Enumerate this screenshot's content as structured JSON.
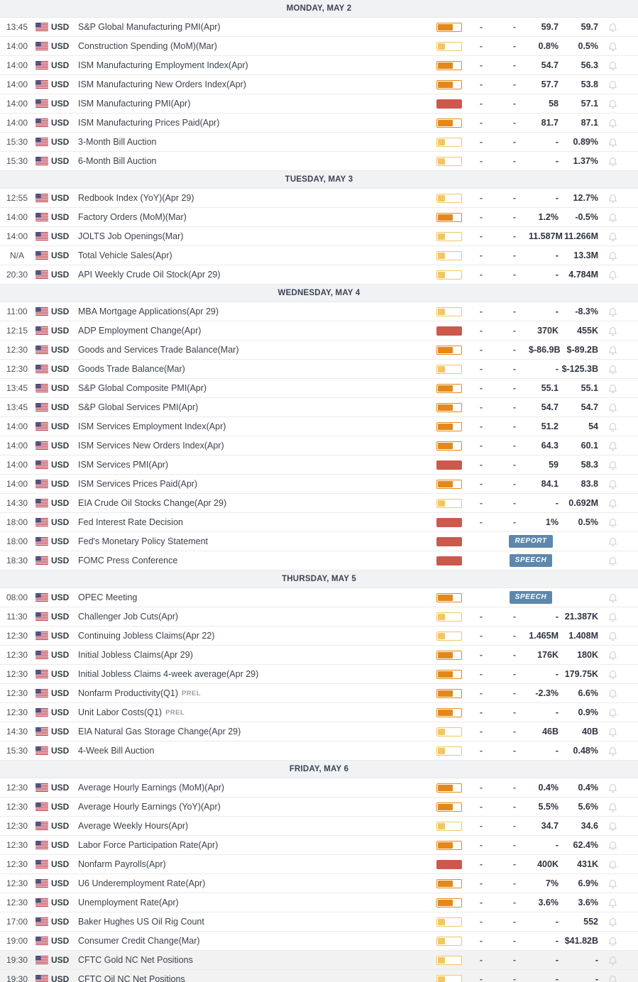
{
  "calendar": {
    "currency_label": "USD",
    "flag_icon": "us-flag-icon",
    "bell_icon": "bell-icon",
    "colors": {
      "low": "#f2c662",
      "medium": "#e2891b",
      "high": "#cd584c",
      "badge_bg": "#5e87ad",
      "day_header_bg": "#f1f2f4",
      "day_header_text": "#3b4254"
    },
    "days": [
      {
        "label": "MONDAY, MAY 2",
        "events": [
          {
            "time": "13:45",
            "currency": "USD",
            "name": "S&P Global Manufacturing PMI(Apr)",
            "volatility": "medium",
            "dash1": "-",
            "dash2": "-",
            "consensus": "59.7",
            "previous": "59.7"
          },
          {
            "time": "14:00",
            "currency": "USD",
            "name": "Construction Spending (MoM)(Mar)",
            "volatility": "low",
            "dash1": "-",
            "dash2": "-",
            "consensus": "0.8%",
            "previous": "0.5%"
          },
          {
            "time": "14:00",
            "currency": "USD",
            "name": "ISM Manufacturing Employment Index(Apr)",
            "volatility": "medium",
            "dash1": "-",
            "dash2": "-",
            "consensus": "54.7",
            "previous": "56.3"
          },
          {
            "time": "14:00",
            "currency": "USD",
            "name": "ISM Manufacturing New Orders Index(Apr)",
            "volatility": "medium",
            "dash1": "-",
            "dash2": "-",
            "consensus": "57.7",
            "previous": "53.8"
          },
          {
            "time": "14:00",
            "currency": "USD",
            "name": "ISM Manufacturing PMI(Apr)",
            "volatility": "high",
            "dash1": "-",
            "dash2": "-",
            "consensus": "58",
            "previous": "57.1"
          },
          {
            "time": "14:00",
            "currency": "USD",
            "name": "ISM Manufacturing Prices Paid(Apr)",
            "volatility": "medium",
            "dash1": "-",
            "dash2": "-",
            "consensus": "81.7",
            "previous": "87.1"
          },
          {
            "time": "15:30",
            "currency": "USD",
            "name": "3-Month Bill Auction",
            "volatility": "low",
            "dash1": "-",
            "dash2": "-",
            "consensus": "-",
            "previous": "0.89%"
          },
          {
            "time": "15:30",
            "currency": "USD",
            "name": "6-Month Bill Auction",
            "volatility": "low",
            "dash1": "-",
            "dash2": "-",
            "consensus": "-",
            "previous": "1.37%"
          }
        ]
      },
      {
        "label": "TUESDAY, MAY 3",
        "events": [
          {
            "time": "12:55",
            "currency": "USD",
            "name": "Redbook Index (YoY)(Apr 29)",
            "volatility": "low",
            "dash1": "-",
            "dash2": "-",
            "consensus": "-",
            "previous": "12.7%"
          },
          {
            "time": "14:00",
            "currency": "USD",
            "name": "Factory Orders (MoM)(Mar)",
            "volatility": "medium",
            "dash1": "-",
            "dash2": "-",
            "consensus": "1.2%",
            "previous": "-0.5%"
          },
          {
            "time": "14:00",
            "currency": "USD",
            "name": "JOLTS Job Openings(Mar)",
            "volatility": "low",
            "dash1": "-",
            "dash2": "-",
            "consensus": "11.587M",
            "previous": "11.266M"
          },
          {
            "time": "N/A",
            "currency": "USD",
            "name": "Total Vehicle Sales(Apr)",
            "volatility": "low",
            "dash1": "-",
            "dash2": "-",
            "consensus": "-",
            "previous": "13.3M"
          },
          {
            "time": "20:30",
            "currency": "USD",
            "name": "API Weekly Crude Oil Stock(Apr 29)",
            "volatility": "low",
            "dash1": "-",
            "dash2": "-",
            "consensus": "-",
            "previous": "4.784M"
          }
        ]
      },
      {
        "label": "WEDNESDAY, MAY 4",
        "events": [
          {
            "time": "11:00",
            "currency": "USD",
            "name": "MBA Mortgage Applications(Apr 29)",
            "volatility": "low",
            "dash1": "-",
            "dash2": "-",
            "consensus": "-",
            "previous": "-8.3%"
          },
          {
            "time": "12:15",
            "currency": "USD",
            "name": "ADP Employment Change(Apr)",
            "volatility": "high",
            "dash1": "-",
            "dash2": "-",
            "consensus": "370K",
            "previous": "455K"
          },
          {
            "time": "12:30",
            "currency": "USD",
            "name": "Goods and Services Trade Balance(Mar)",
            "volatility": "medium",
            "dash1": "-",
            "dash2": "-",
            "consensus": "$-86.9B",
            "previous": "$-89.2B"
          },
          {
            "time": "12:30",
            "currency": "USD",
            "name": "Goods Trade Balance(Mar)",
            "volatility": "low",
            "dash1": "-",
            "dash2": "-",
            "consensus": "-",
            "previous": "$-125.3B"
          },
          {
            "time": "13:45",
            "currency": "USD",
            "name": "S&P Global Composite PMI(Apr)",
            "volatility": "medium",
            "dash1": "-",
            "dash2": "-",
            "consensus": "55.1",
            "previous": "55.1"
          },
          {
            "time": "13:45",
            "currency": "USD",
            "name": "S&P Global Services PMI(Apr)",
            "volatility": "medium",
            "dash1": "-",
            "dash2": "-",
            "consensus": "54.7",
            "previous": "54.7"
          },
          {
            "time": "14:00",
            "currency": "USD",
            "name": "ISM Services Employment Index(Apr)",
            "volatility": "medium",
            "dash1": "-",
            "dash2": "-",
            "consensus": "51.2",
            "previous": "54"
          },
          {
            "time": "14:00",
            "currency": "USD",
            "name": "ISM Services New Orders Index(Apr)",
            "volatility": "medium",
            "dash1": "-",
            "dash2": "-",
            "consensus": "64.3",
            "previous": "60.1"
          },
          {
            "time": "14:00",
            "currency": "USD",
            "name": "ISM Services PMI(Apr)",
            "volatility": "high",
            "dash1": "-",
            "dash2": "-",
            "consensus": "59",
            "previous": "58.3"
          },
          {
            "time": "14:00",
            "currency": "USD",
            "name": "ISM Services Prices Paid(Apr)",
            "volatility": "medium",
            "dash1": "-",
            "dash2": "-",
            "consensus": "84.1",
            "previous": "83.8"
          },
          {
            "time": "14:30",
            "currency": "USD",
            "name": "EIA Crude Oil Stocks Change(Apr 29)",
            "volatility": "low",
            "dash1": "-",
            "dash2": "-",
            "consensus": "-",
            "previous": "0.692M"
          },
          {
            "time": "18:00",
            "currency": "USD",
            "name": "Fed Interest Rate Decision",
            "volatility": "high",
            "dash1": "-",
            "dash2": "-",
            "consensus": "1%",
            "previous": "0.5%"
          },
          {
            "time": "18:00",
            "currency": "USD",
            "name": "Fed's Monetary Policy Statement",
            "volatility": "high",
            "badge": "REPORT"
          },
          {
            "time": "18:30",
            "currency": "USD",
            "name": "FOMC Press Conference",
            "volatility": "high",
            "badge": "SPEECH"
          }
        ]
      },
      {
        "label": "THURSDAY, MAY 5",
        "events": [
          {
            "time": "08:00",
            "currency": "USD",
            "name": "OPEC Meeting",
            "volatility": "medium",
            "badge": "SPEECH"
          },
          {
            "time": "11:30",
            "currency": "USD",
            "name": "Challenger Job Cuts(Apr)",
            "volatility": "low",
            "dash1": "-",
            "dash2": "-",
            "consensus": "-",
            "previous": "21.387K"
          },
          {
            "time": "12:30",
            "currency": "USD",
            "name": "Continuing Jobless Claims(Apr 22)",
            "volatility": "low",
            "dash1": "-",
            "dash2": "-",
            "consensus": "1.465M",
            "previous": "1.408M"
          },
          {
            "time": "12:30",
            "currency": "USD",
            "name": "Initial Jobless Claims(Apr 29)",
            "volatility": "medium",
            "dash1": "-",
            "dash2": "-",
            "consensus": "176K",
            "previous": "180K"
          },
          {
            "time": "12:30",
            "currency": "USD",
            "name": "Initial Jobless Claims 4-week average(Apr 29)",
            "volatility": "medium",
            "dash1": "-",
            "dash2": "-",
            "consensus": "-",
            "previous": "179.75K"
          },
          {
            "time": "12:30",
            "currency": "USD",
            "name": "Nonfarm Productivity(Q1)",
            "tag": "PREL",
            "volatility": "medium",
            "dash1": "-",
            "dash2": "-",
            "consensus": "-2.3%",
            "previous": "6.6%"
          },
          {
            "time": "12:30",
            "currency": "USD",
            "name": "Unit Labor Costs(Q1)",
            "tag": "PREL",
            "volatility": "medium",
            "dash1": "-",
            "dash2": "-",
            "consensus": "-",
            "previous": "0.9%"
          },
          {
            "time": "14:30",
            "currency": "USD",
            "name": "EIA Natural Gas Storage Change(Apr 29)",
            "volatility": "low",
            "dash1": "-",
            "dash2": "-",
            "consensus": "46B",
            "previous": "40B"
          },
          {
            "time": "15:30",
            "currency": "USD",
            "name": "4-Week Bill Auction",
            "volatility": "low",
            "dash1": "-",
            "dash2": "-",
            "consensus": "-",
            "previous": "0.48%"
          }
        ]
      },
      {
        "label": "FRIDAY, MAY 6",
        "events": [
          {
            "time": "12:30",
            "currency": "USD",
            "name": "Average Hourly Earnings (MoM)(Apr)",
            "volatility": "medium",
            "dash1": "-",
            "dash2": "-",
            "consensus": "0.4%",
            "previous": "0.4%"
          },
          {
            "time": "12:30",
            "currency": "USD",
            "name": "Average Hourly Earnings (YoY)(Apr)",
            "volatility": "medium",
            "dash1": "-",
            "dash2": "-",
            "consensus": "5.5%",
            "previous": "5.6%"
          },
          {
            "time": "12:30",
            "currency": "USD",
            "name": "Average Weekly Hours(Apr)",
            "volatility": "low",
            "dash1": "-",
            "dash2": "-",
            "consensus": "34.7",
            "previous": "34.6"
          },
          {
            "time": "12:30",
            "currency": "USD",
            "name": "Labor Force Participation Rate(Apr)",
            "volatility": "medium",
            "dash1": "-",
            "dash2": "-",
            "consensus": "-",
            "previous": "62.4%"
          },
          {
            "time": "12:30",
            "currency": "USD",
            "name": "Nonfarm Payrolls(Apr)",
            "volatility": "high",
            "dash1": "-",
            "dash2": "-",
            "consensus": "400K",
            "previous": "431K"
          },
          {
            "time": "12:30",
            "currency": "USD",
            "name": "U6 Underemployment Rate(Apr)",
            "volatility": "medium",
            "dash1": "-",
            "dash2": "-",
            "consensus": "7%",
            "previous": "6.9%"
          },
          {
            "time": "12:30",
            "currency": "USD",
            "name": "Unemployment Rate(Apr)",
            "volatility": "medium",
            "dash1": "-",
            "dash2": "-",
            "consensus": "3.6%",
            "previous": "3.6%"
          },
          {
            "time": "17:00",
            "currency": "USD",
            "name": "Baker Hughes US Oil Rig Count",
            "volatility": "low",
            "dash1": "-",
            "dash2": "-",
            "consensus": "-",
            "previous": "552"
          },
          {
            "time": "19:00",
            "currency": "USD",
            "name": "Consumer Credit Change(Mar)",
            "volatility": "low",
            "dash1": "-",
            "dash2": "-",
            "consensus": "-",
            "previous": "$41.82B"
          },
          {
            "time": "19:30",
            "currency": "USD",
            "name": "CFTC Gold NC Net Positions",
            "volatility": "low",
            "dash1": "-",
            "dash2": "-",
            "consensus": "-",
            "previous": "-",
            "muted": true
          },
          {
            "time": "19:30",
            "currency": "USD",
            "name": "CFTC Oil NC Net Positions",
            "volatility": "low",
            "dash1": "-",
            "dash2": "-",
            "consensus": "-",
            "previous": "-",
            "muted": true
          }
        ]
      }
    ]
  }
}
